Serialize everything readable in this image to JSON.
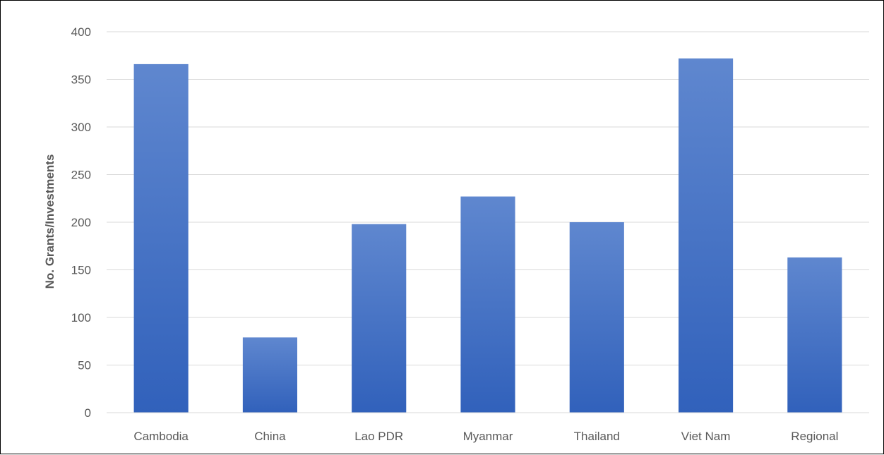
{
  "chart_data": {
    "type": "bar",
    "title": "",
    "xlabel": "",
    "ylabel": "No. Grants/Investments",
    "categories": [
      "Cambodia",
      "China",
      "Lao PDR",
      "Myanmar",
      "Thailand",
      "Viet Nam",
      "Regional"
    ],
    "values": [
      366,
      79,
      198,
      227,
      200,
      372,
      163
    ],
    "ylim": [
      0,
      400
    ],
    "yticks": [
      "0",
      "50",
      "100",
      "150",
      "200",
      "250",
      "300",
      "350",
      "400"
    ],
    "grid": true,
    "legend": "none",
    "colors": {
      "bar_top": "#5f87cf",
      "bar_bottom": "#3161bb",
      "grid": "#d9d9d9",
      "text": "#595959"
    }
  }
}
